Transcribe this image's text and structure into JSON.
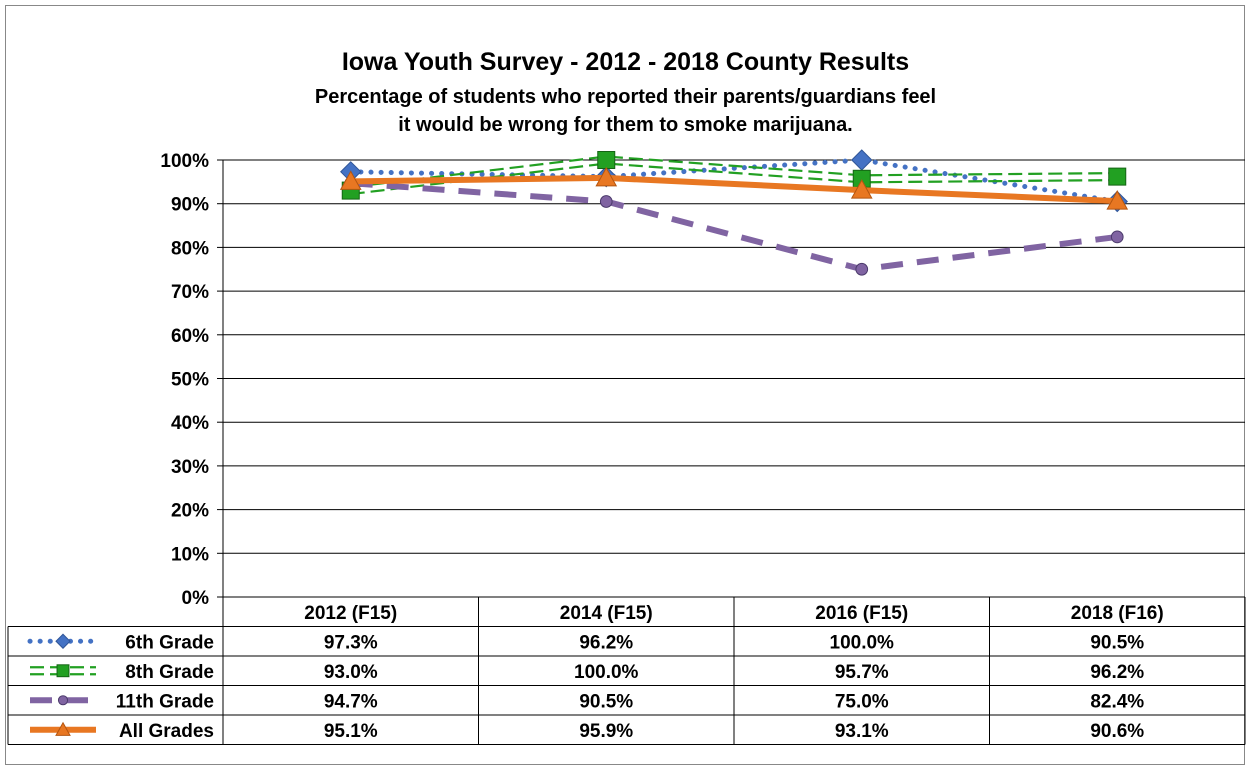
{
  "chart_data": {
    "type": "line",
    "title": "Iowa Youth Survey - 2012 - 2018 County Results",
    "subtitle_lines": [
      "Percentage of students who reported their parents/guardians feel",
      "it would be wrong for them to smoke marijuana."
    ],
    "categories": [
      "2012 (F15)",
      "2014 (F15)",
      "2016 (F15)",
      "2018 (F16)"
    ],
    "ylim": [
      0,
      100
    ],
    "yticks": [
      0,
      10,
      20,
      30,
      40,
      50,
      60,
      70,
      80,
      90,
      100
    ],
    "ytick_labels": [
      "0%",
      "10%",
      "20%",
      "30%",
      "40%",
      "50%",
      "60%",
      "70%",
      "80%",
      "90%",
      "100%"
    ],
    "grid": true,
    "legend": "data-table",
    "series": [
      {
        "name": "6th Grade",
        "values": [
          97.3,
          96.2,
          100.0,
          90.5
        ],
        "labels": [
          "97.3%",
          "96.2%",
          "100.0%",
          "90.5%"
        ],
        "color": "#4472c4",
        "marker": "diamond",
        "line": "dotted"
      },
      {
        "name": "8th Grade",
        "values": [
          93.0,
          100.0,
          95.7,
          96.2
        ],
        "labels": [
          "93.0%",
          "100.0%",
          "95.7%",
          "96.2%"
        ],
        "color": "#22a022",
        "marker": "square",
        "line": "double-dashed"
      },
      {
        "name": "11th Grade",
        "values": [
          94.7,
          90.5,
          75.0,
          82.4
        ],
        "labels": [
          "94.7%",
          "90.5%",
          "75.0%",
          "82.4%"
        ],
        "color": "#8064a2",
        "marker": "circle",
        "line": "long-dashed"
      },
      {
        "name": "All Grades",
        "values": [
          95.1,
          95.9,
          93.1,
          90.6
        ],
        "labels": [
          "95.1%",
          "95.9%",
          "93.1%",
          "90.6%"
        ],
        "color": "#e87722",
        "marker": "triangle",
        "line": "solid"
      }
    ]
  }
}
